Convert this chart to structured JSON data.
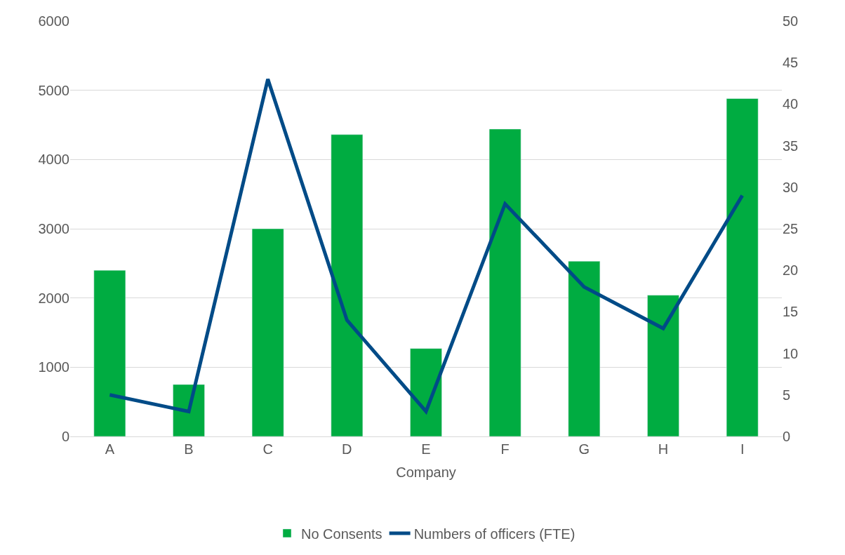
{
  "chart_data": {
    "type": "bar",
    "xlabel": "Company",
    "categories": [
      "A",
      "B",
      "C",
      "D",
      "E",
      "F",
      "G",
      "H",
      "I"
    ],
    "series": [
      {
        "name": "No Consents",
        "color": "#00ac41",
        "values": [
          2400,
          750,
          3000,
          4360,
          1270,
          4440,
          2530,
          2040,
          4880
        ]
      },
      {
        "name": "Numbers of officers (FTE)",
        "color": "#004b87",
        "type": "line",
        "axis": "y2",
        "values": [
          5,
          3,
          43,
          14,
          3,
          28,
          18,
          13,
          29
        ]
      }
    ],
    "ylim": [
      0,
      6000
    ],
    "yticks": [
      0,
      1000,
      2000,
      3000,
      4000,
      5000,
      6000
    ],
    "y2lim": [
      0,
      50
    ],
    "y2ticks": [
      0,
      5,
      10,
      15,
      20,
      25,
      30,
      35,
      40,
      45,
      50
    ],
    "grid": "y",
    "legend": "bottom",
    "marker": "none"
  }
}
